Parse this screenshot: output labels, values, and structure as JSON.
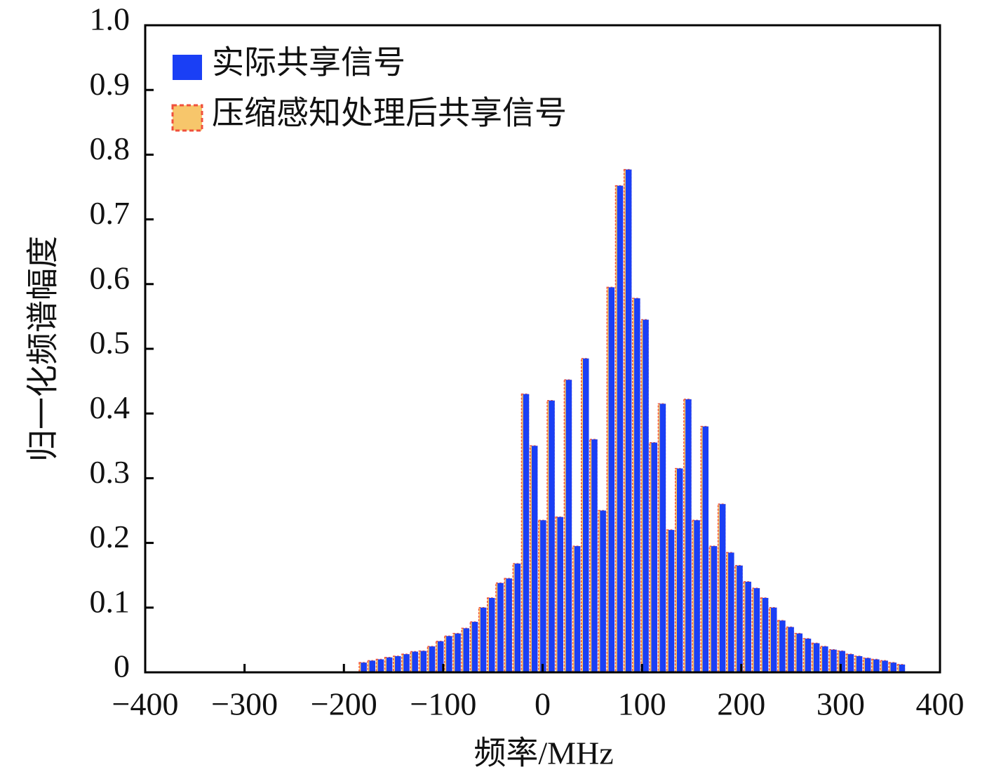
{
  "chart_data": {
    "type": "bar",
    "xlabel": "频率/MHz",
    "ylabel": "归一化频谱幅度",
    "x": [
      -180,
      -171.4,
      -162.8,
      -154.2,
      -145.6,
      -137,
      -128.4,
      -119.8,
      -111.2,
      -102.6,
      -94,
      -85.4,
      -76.8,
      -68.2,
      -59.6,
      -51,
      -42.4,
      -33.8,
      -25.2,
      -16.6,
      -8,
      0.6,
      9.2,
      17.8,
      26.4,
      35,
      43.6,
      52.2,
      60.8,
      69.4,
      78,
      86.6,
      95.2,
      103.8,
      112.4,
      121,
      129.6,
      138.2,
      146.8,
      155.4,
      164,
      172.6,
      181.2,
      189.8,
      198.4,
      207,
      215.6,
      224.2,
      232.8,
      241.4,
      250,
      258.6,
      267.2,
      275.8,
      284.4,
      293,
      301.6,
      310.2,
      318.8,
      327.4,
      336,
      344.6,
      353.2,
      361.8
    ],
    "series": [
      {
        "name": "压缩感知处理后共享信号",
        "color": "#f7c66b",
        "edge_color": "#f0503c",
        "values": [
          0.015,
          0.018,
          0.02,
          0.023,
          0.025,
          0.028,
          0.032,
          0.033,
          0.04,
          0.048,
          0.056,
          0.06,
          0.068,
          0.078,
          0.1,
          0.115,
          0.138,
          0.145,
          0.168,
          0.43,
          0.35,
          0.235,
          0.42,
          0.24,
          0.452,
          0.195,
          0.485,
          0.36,
          0.25,
          0.595,
          0.752,
          0.777,
          0.578,
          0.545,
          0.355,
          0.415,
          0.22,
          0.315,
          0.422,
          0.235,
          0.38,
          0.195,
          0.26,
          0.185,
          0.165,
          0.14,
          0.13,
          0.115,
          0.1,
          0.08,
          0.07,
          0.06,
          0.052,
          0.045,
          0.04,
          0.035,
          0.033,
          0.028,
          0.025,
          0.022,
          0.02,
          0.018,
          0.015,
          0.012
        ]
      },
      {
        "name": "实际共享信号",
        "color": "#1a3ff5",
        "values": [
          0.015,
          0.018,
          0.02,
          0.023,
          0.025,
          0.028,
          0.032,
          0.033,
          0.04,
          0.048,
          0.056,
          0.06,
          0.068,
          0.078,
          0.1,
          0.115,
          0.138,
          0.145,
          0.168,
          0.43,
          0.35,
          0.235,
          0.42,
          0.24,
          0.452,
          0.195,
          0.485,
          0.36,
          0.25,
          0.595,
          0.752,
          0.777,
          0.578,
          0.545,
          0.355,
          0.415,
          0.22,
          0.315,
          0.422,
          0.235,
          0.38,
          0.195,
          0.26,
          0.185,
          0.165,
          0.14,
          0.13,
          0.115,
          0.1,
          0.08,
          0.07,
          0.06,
          0.052,
          0.045,
          0.04,
          0.035,
          0.033,
          0.028,
          0.025,
          0.022,
          0.02,
          0.018,
          0.015,
          0.012
        ]
      }
    ],
    "xlim": [
      -400,
      400
    ],
    "xticks": [
      {
        "value": -400,
        "label": "−400"
      },
      {
        "value": -300,
        "label": "−300"
      },
      {
        "value": -200,
        "label": "−200"
      },
      {
        "value": -100,
        "label": "−100"
      },
      0,
      100,
      200,
      300,
      400
    ],
    "ylim": [
      0,
      1
    ],
    "yticks": [
      0,
      0.1,
      0.2,
      0.3,
      0.4,
      0.5,
      0.6,
      0.7,
      0.8,
      0.9,
      {
        "value": 1,
        "label": "1.0"
      }
    ],
    "legend": "upper left",
    "grid": false
  }
}
